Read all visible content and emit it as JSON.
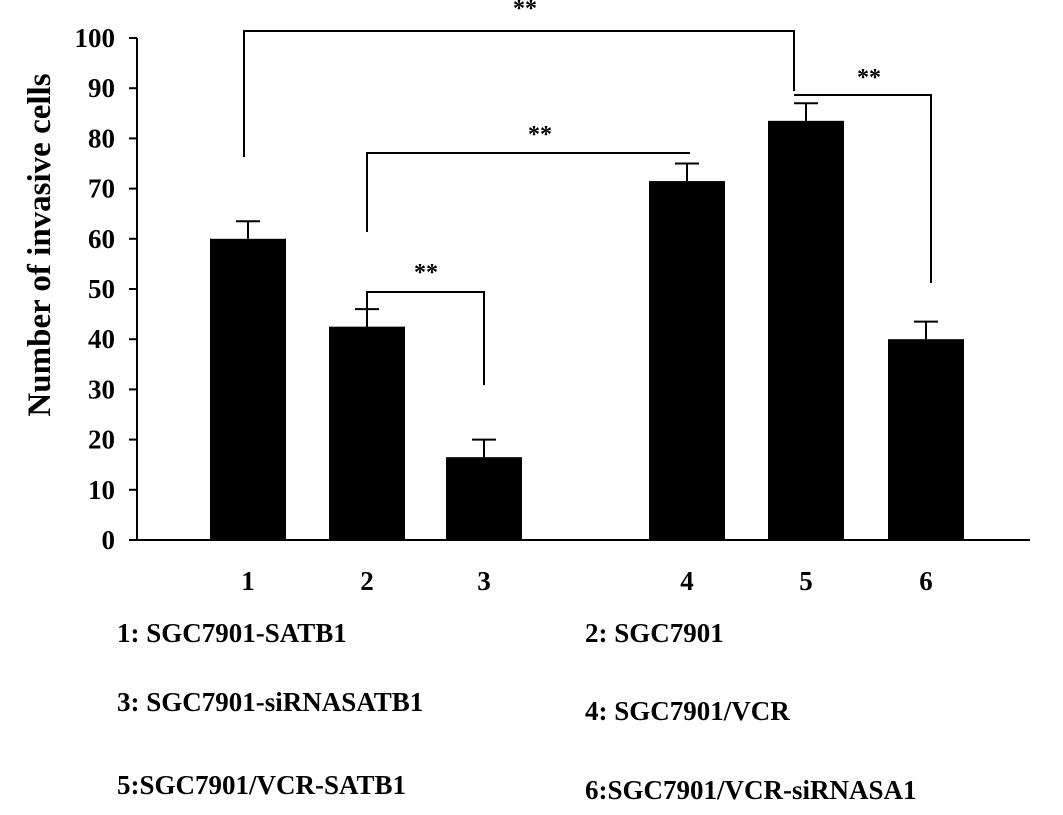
{
  "chart_data": {
    "type": "bar",
    "ylabel": "Number of invasive cells",
    "xlabel": "",
    "ylim": [
      0,
      100
    ],
    "y_ticks": [
      0,
      10,
      20,
      30,
      40,
      50,
      60,
      70,
      80,
      90,
      100
    ],
    "categories": [
      "1",
      "2",
      "3",
      "4",
      "5",
      "6"
    ],
    "values": [
      60,
      42.5,
      16.5,
      71.5,
      83.5,
      40
    ],
    "errors": [
      3.5,
      3.5,
      3.5,
      3.5,
      3.5,
      3.5
    ],
    "bar_color": "#000000",
    "grid": false,
    "significance": [
      {
        "from": "1",
        "to": "5",
        "label": "**"
      },
      {
        "from": "2",
        "to": "4",
        "label": "**"
      },
      {
        "from": "2",
        "to": "3",
        "label": "**"
      },
      {
        "from": "5",
        "to": "6",
        "label": "**"
      }
    ],
    "legend": [
      "1: SGC7901-SATB1",
      "2: SGC7901",
      "3: SGC7901-siRNASATB1",
      "4: SGC7901/VCR",
      "5:SGC7901/VCR-SATB1",
      "6:SGC7901/VCR-siRNASA1"
    ]
  }
}
